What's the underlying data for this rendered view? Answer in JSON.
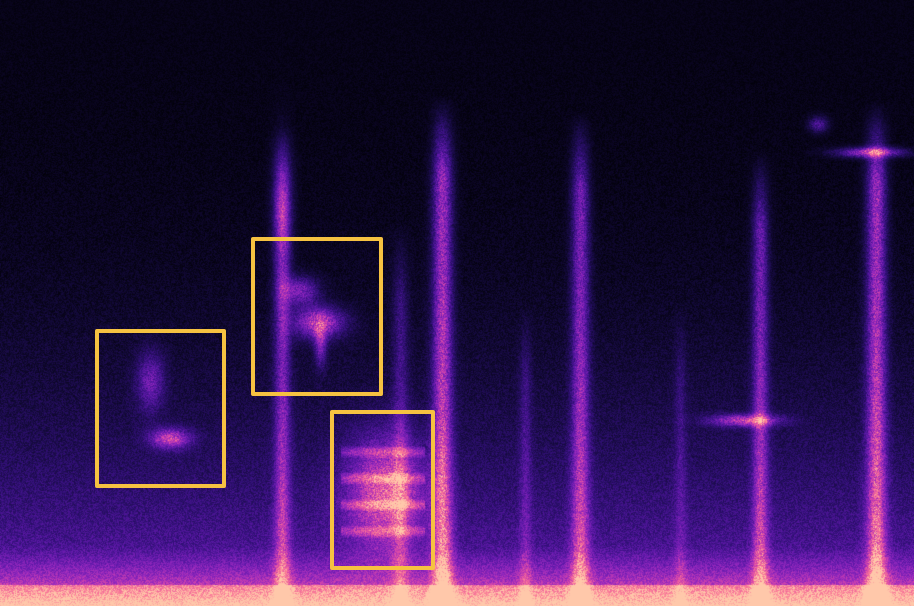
{
  "spectrogram": {
    "colormap": "magma",
    "background_color": "#000000",
    "low_color": "#2a0a6e",
    "mid_color": "#8a1fc4",
    "high_color": "#ff7fc8",
    "energy_band_color": "#ff5ab4"
  },
  "annotations": {
    "box_color": "#f6c241",
    "count": 3,
    "boxes": [
      {
        "id": "box-1"
      },
      {
        "id": "box-2"
      },
      {
        "id": "box-3"
      }
    ]
  }
}
